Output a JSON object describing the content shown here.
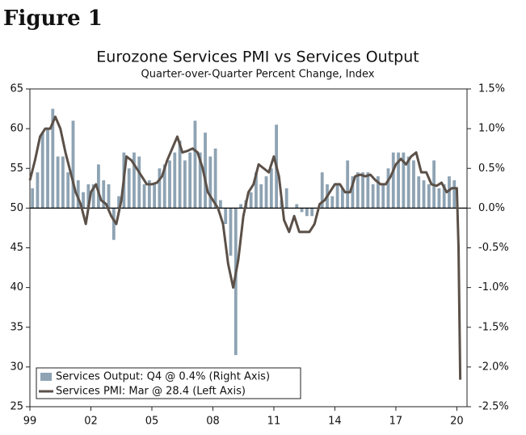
{
  "header": {
    "title": "Figure 1"
  },
  "chart_data": {
    "type": "combo",
    "title": "Eurozone Services PMI vs Services Output",
    "subtitle": "Quarter-over-Quarter Percent Change, Index",
    "xlim": [
      1999,
      2020.5
    ],
    "xticks": [
      {
        "value": 1999,
        "label": "99"
      },
      {
        "value": 2002,
        "label": "02"
      },
      {
        "value": 2005,
        "label": "05"
      },
      {
        "value": 2008,
        "label": "08"
      },
      {
        "value": 2011,
        "label": "11"
      },
      {
        "value": 2014,
        "label": "14"
      },
      {
        "value": 2017,
        "label": "17"
      },
      {
        "value": 2020,
        "label": "20"
      }
    ],
    "ylim": [
      25,
      65
    ],
    "yticks": [
      25,
      30,
      35,
      40,
      45,
      50,
      55,
      60,
      65
    ],
    "y2lim": [
      -2.5,
      1.5
    ],
    "y2ticks": [
      {
        "value": 1.5,
        "label": "1.5%"
      },
      {
        "value": 1.0,
        "label": "1.0%"
      },
      {
        "value": 0.5,
        "label": "0.5%"
      },
      {
        "value": 0.0,
        "label": "0.0%"
      },
      {
        "value": -0.5,
        "label": "-0.5%"
      },
      {
        "value": -1.0,
        "label": "-1.0%"
      },
      {
        "value": -1.5,
        "label": "-1.5%"
      },
      {
        "value": -2.0,
        "label": "-2.0%"
      },
      {
        "value": -2.5,
        "label": "-2.5%"
      }
    ],
    "legend": "lower-left",
    "series": [
      {
        "name": "Services Output: Q4 @ 0.4% (Right Axis)",
        "type": "bar",
        "axis": "y2",
        "color": "#8ea3b3",
        "x": [
          1999.125,
          1999.375,
          1999.625,
          1999.875,
          2000.125,
          2000.375,
          2000.625,
          2000.875,
          2001.125,
          2001.375,
          2001.625,
          2001.875,
          2002.125,
          2002.375,
          2002.625,
          2002.875,
          2003.125,
          2003.375,
          2003.625,
          2003.875,
          2004.125,
          2004.375,
          2004.625,
          2004.875,
          2005.125,
          2005.375,
          2005.625,
          2005.875,
          2006.125,
          2006.375,
          2006.625,
          2006.875,
          2007.125,
          2007.375,
          2007.625,
          2007.875,
          2008.125,
          2008.375,
          2008.625,
          2008.875,
          2009.125,
          2009.375,
          2009.625,
          2009.875,
          2010.125,
          2010.375,
          2010.625,
          2010.875,
          2011.125,
          2011.375,
          2011.625,
          2011.875,
          2012.125,
          2012.375,
          2012.625,
          2012.875,
          2013.125,
          2013.375,
          2013.625,
          2013.875,
          2014.125,
          2014.375,
          2014.625,
          2014.875,
          2015.125,
          2015.375,
          2015.625,
          2015.875,
          2016.125,
          2016.375,
          2016.625,
          2016.875,
          2017.125,
          2017.375,
          2017.625,
          2017.875,
          2018.125,
          2018.375,
          2018.625,
          2018.875,
          2019.125,
          2019.375,
          2019.625,
          2019.875
        ],
        "values": [
          0.25,
          0.45,
          0.95,
          1.0,
          1.25,
          0.65,
          0.65,
          0.45,
          1.1,
          0.35,
          0.2,
          0.3,
          0.3,
          0.55,
          0.35,
          0.3,
          -0.4,
          0.15,
          0.7,
          0.5,
          0.7,
          0.65,
          0.3,
          0.35,
          0.3,
          0.5,
          0.55,
          0.6,
          0.7,
          0.85,
          0.6,
          0.7,
          1.1,
          0.7,
          0.95,
          0.65,
          0.75,
          0.1,
          -0.2,
          -0.6,
          -1.85,
          0.05,
          0.1,
          0.2,
          0.45,
          0.3,
          0.4,
          0.5,
          1.05,
          0.1,
          0.25,
          0.0,
          0.05,
          -0.05,
          -0.1,
          -0.1,
          0.0,
          0.45,
          0.3,
          0.15,
          0.3,
          0.25,
          0.6,
          0.4,
          0.45,
          0.45,
          0.45,
          0.3,
          0.4,
          0.3,
          0.5,
          0.7,
          0.7,
          0.7,
          0.65,
          0.6,
          0.4,
          0.35,
          0.3,
          0.6,
          0.25,
          0.3,
          0.4,
          0.35
        ]
      },
      {
        "name": "Services PMI: Mar @ 28.4 (Left Axis)",
        "type": "line",
        "color": "#5b5048",
        "x": [
          1999,
          1999.25,
          1999.5,
          1999.75,
          2000,
          2000.25,
          2000.5,
          2000.75,
          2001,
          2001.25,
          2001.5,
          2001.75,
          2002,
          2002.25,
          2002.5,
          2002.75,
          2003,
          2003.25,
          2003.5,
          2003.75,
          2004,
          2004.25,
          2004.5,
          2004.75,
          2005,
          2005.25,
          2005.5,
          2005.75,
          2006,
          2006.25,
          2006.5,
          2006.75,
          2007,
          2007.25,
          2007.5,
          2007.75,
          2008,
          2008.25,
          2008.5,
          2008.75,
          2009,
          2009.25,
          2009.5,
          2009.75,
          2010,
          2010.25,
          2010.5,
          2010.75,
          2011,
          2011.25,
          2011.5,
          2011.75,
          2012,
          2012.25,
          2012.5,
          2012.75,
          2013,
          2013.25,
          2013.5,
          2013.75,
          2014,
          2014.25,
          2014.5,
          2014.75,
          2015,
          2015.25,
          2015.5,
          2015.75,
          2016,
          2016.25,
          2016.5,
          2016.75,
          2017,
          2017.25,
          2017.5,
          2017.75,
          2018,
          2018.25,
          2018.5,
          2018.75,
          2019,
          2019.25,
          2019.5,
          2019.75,
          2020,
          2020.083,
          2020.167
        ],
        "values": [
          53.5,
          56,
          59,
          60,
          60,
          61.5,
          60,
          57,
          54.5,
          52,
          50.5,
          48,
          52,
          53,
          51,
          50.5,
          49,
          48,
          51,
          56.5,
          56,
          55,
          54,
          53,
          53,
          53.2,
          54,
          56,
          57.5,
          59,
          57,
          57.2,
          57.5,
          57,
          55,
          52,
          51,
          50,
          48,
          43,
          40,
          43.5,
          49,
          52,
          53,
          55.5,
          55,
          54.5,
          56.5,
          54,
          48.5,
          47,
          49,
          47,
          47,
          47,
          48,
          50.5,
          51,
          52,
          53,
          53,
          52,
          52,
          54,
          54.2,
          54,
          54.2,
          53.5,
          53,
          53,
          54,
          55.5,
          56.2,
          55.5,
          56.5,
          57,
          54.5,
          54.5,
          53,
          52.8,
          53.2,
          52,
          52.5,
          52.5,
          45,
          28.4
        ]
      }
    ]
  }
}
